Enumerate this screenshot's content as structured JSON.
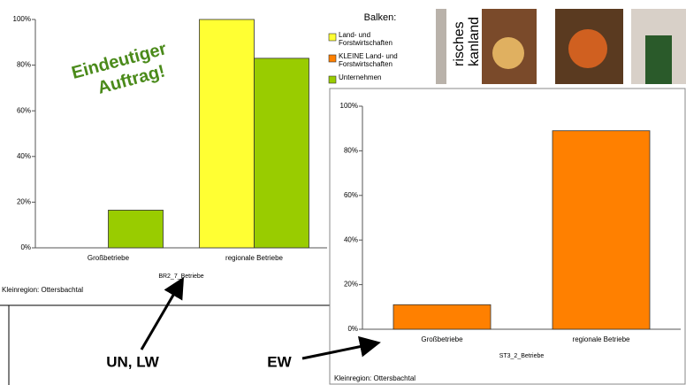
{
  "chart_data": [
    {
      "type": "bar",
      "categories": [
        "Großbetriebe",
        "regionale Betriebe"
      ],
      "series": [
        {
          "name": "Land- und Forstwirtschaften",
          "color": "#ffff33",
          "values": [
            0,
            100
          ]
        },
        {
          "name": "KLEINE Land- und Forstwirtschaften",
          "color": "#ff8000",
          "values": [
            null,
            null
          ]
        },
        {
          "name": "Unternehmen",
          "color": "#99cc00",
          "values": [
            16.5,
            83
          ]
        }
      ],
      "legend_title": "Balken:",
      "xlabel": "BR2_7_Betriebe",
      "footnote": "Kleinregion: Ottersbachtal",
      "annotation": "Eindeutiger Auftrag!",
      "ylim": [
        0,
        100
      ],
      "yticks": [
        {
          "value": 0,
          "label": "0%"
        },
        {
          "value": 20,
          "label": "20%"
        },
        {
          "value": 40,
          "label": "40%"
        },
        {
          "value": 60,
          "label": "60%"
        },
        {
          "value": 80,
          "label": "80%"
        },
        {
          "value": 100,
          "label": "100%"
        }
      ]
    },
    {
      "type": "bar",
      "categories": [
        "Großbetriebe",
        "regionale Betriebe"
      ],
      "series": [
        {
          "name": null,
          "color": "#ff8000",
          "values": [
            11,
            89
          ]
        }
      ],
      "xlabel": "ST3_2_Betriebe",
      "footnote": "Kleinregion: Ottersbachtal",
      "ylim": [
        0,
        100
      ],
      "yticks": [
        {
          "value": 0,
          "label": "0%"
        },
        {
          "value": 20,
          "label": "20%"
        },
        {
          "value": 40,
          "label": "40%"
        },
        {
          "value": 60,
          "label": "60%"
        },
        {
          "value": 80,
          "label": "80%"
        },
        {
          "value": 100,
          "label": "100%"
        }
      ]
    }
  ],
  "callouts": [
    "UN, LW",
    "EW"
  ],
  "banner": [
    "risches",
    "kanland"
  ]
}
